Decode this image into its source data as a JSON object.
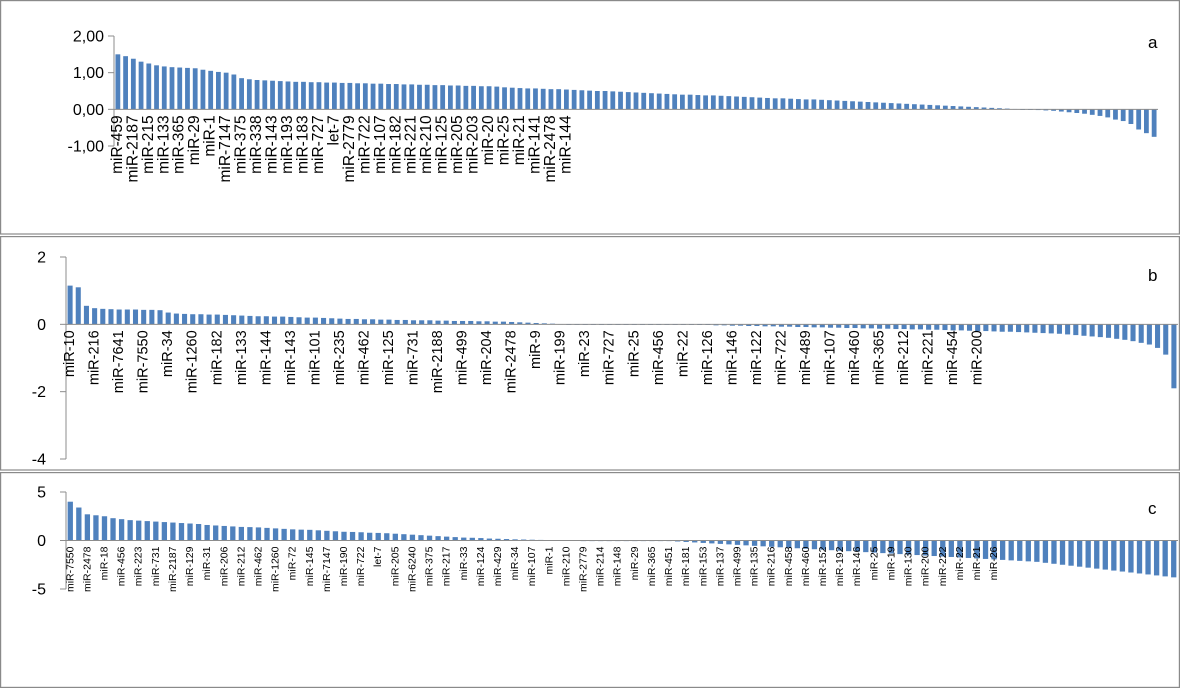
{
  "figure": {
    "bar_color": "#4f81bd",
    "frame_color": "#8a8a8a",
    "axis_color": "#8c8c8c"
  },
  "chart_data": [
    {
      "type": "bar",
      "panel_label": "a",
      "title": "",
      "xlabel": "",
      "ylabel": "",
      "ylim": [
        -1,
        2
      ],
      "yticks": [
        2,
        1,
        0,
        -1
      ],
      "ytick_labels": [
        "2,00",
        "1,00",
        "0,00",
        "-1,00"
      ],
      "grid": false,
      "legend": "none",
      "xtick_labels": [
        "miR-459",
        "miR-2187",
        "miR-215",
        "miR-133",
        "miR-365",
        "miR-29",
        "miR-1",
        "miR-7147",
        "miR-375",
        "miR-338",
        "miR-143",
        "miR-193",
        "miR-183",
        "miR-727",
        "let-7",
        "miR-2779",
        "miR-722",
        "miR-107",
        "miR-182",
        "miR-221",
        "miR-210",
        "miR-125",
        "miR-205",
        "miR-203",
        "miR-20",
        "miR-25",
        "miR-21",
        "miR-141",
        "miR-2478",
        "miR-144"
      ],
      "xtick_every": 2,
      "values": [
        1.5,
        1.45,
        1.38,
        1.3,
        1.25,
        1.2,
        1.17,
        1.15,
        1.14,
        1.13,
        1.12,
        1.08,
        1.05,
        1.02,
        1.0,
        0.95,
        0.85,
        0.82,
        0.8,
        0.79,
        0.78,
        0.77,
        0.76,
        0.75,
        0.75,
        0.74,
        0.74,
        0.73,
        0.73,
        0.72,
        0.72,
        0.71,
        0.71,
        0.7,
        0.7,
        0.69,
        0.69,
        0.68,
        0.68,
        0.67,
        0.67,
        0.66,
        0.66,
        0.65,
        0.65,
        0.64,
        0.64,
        0.63,
        0.63,
        0.62,
        0.6,
        0.59,
        0.58,
        0.57,
        0.57,
        0.56,
        0.55,
        0.55,
        0.54,
        0.53,
        0.52,
        0.51,
        0.5,
        0.5,
        0.49,
        0.48,
        0.47,
        0.46,
        0.45,
        0.44,
        0.43,
        0.42,
        0.41,
        0.4,
        0.4,
        0.39,
        0.38,
        0.38,
        0.37,
        0.36,
        0.35,
        0.34,
        0.33,
        0.32,
        0.31,
        0.3,
        0.3,
        0.29,
        0.28,
        0.27,
        0.27,
        0.26,
        0.25,
        0.24,
        0.23,
        0.22,
        0.21,
        0.2,
        0.19,
        0.18,
        0.17,
        0.16,
        0.15,
        0.14,
        0.13,
        0.12,
        0.11,
        0.1,
        0.09,
        0.08,
        0.07,
        0.06,
        0.05,
        0.04,
        0.03,
        0.02,
        0.01,
        0.0,
        -0.01,
        -0.02,
        -0.03,
        -0.04,
        -0.06,
        -0.08,
        -0.1,
        -0.12,
        -0.15,
        -0.18,
        -0.22,
        -0.28,
        -0.32,
        -0.4,
        -0.55,
        -0.65,
        -0.75
      ]
    },
    {
      "type": "bar",
      "panel_label": "b",
      "title": "",
      "xlabel": "",
      "ylabel": "",
      "ylim": [
        -4,
        2
      ],
      "yticks": [
        2,
        0,
        -2,
        -4
      ],
      "ytick_labels": [
        "2",
        "0",
        "-2",
        "-4"
      ],
      "grid": false,
      "legend": "none",
      "xtick_labels": [
        "miR-10",
        "miR-216",
        "miR-7641",
        "miR-7550",
        "miR-34",
        "miR-1260",
        "miR-182",
        "miR-133",
        "miR-144",
        "miR-143",
        "miR-101",
        "miR-235",
        "miR-462",
        "miR-125",
        "miR-731",
        "miR-2188",
        "miR-499",
        "miR-204",
        "miR-2478",
        "miR-9",
        "miR-199",
        "miR-23",
        "miR-727",
        "miR-25",
        "miR-456",
        "miR-22",
        "miR-126",
        "miR-146",
        "miR-122",
        "miR-722",
        "miR-489",
        "miR-107",
        "miR-460",
        "miR-365",
        "miR-212",
        "miR-221",
        "miR-454",
        "miR-200"
      ],
      "xtick_every": 3,
      "values": [
        1.15,
        1.1,
        0.55,
        0.48,
        0.46,
        0.45,
        0.44,
        0.44,
        0.44,
        0.43,
        0.43,
        0.42,
        0.35,
        0.32,
        0.31,
        0.3,
        0.3,
        0.29,
        0.29,
        0.28,
        0.27,
        0.26,
        0.25,
        0.24,
        0.24,
        0.23,
        0.23,
        0.22,
        0.21,
        0.2,
        0.2,
        0.19,
        0.18,
        0.17,
        0.16,
        0.16,
        0.15,
        0.15,
        0.14,
        0.14,
        0.13,
        0.13,
        0.12,
        0.12,
        0.12,
        0.11,
        0.11,
        0.1,
        0.1,
        0.1,
        0.09,
        0.09,
        0.08,
        0.08,
        0.07,
        0.06,
        0.05,
        0.04,
        0.03,
        0.02,
        0.01,
        0.0,
        0.0,
        0.0,
        0.0,
        0.0,
        0.0,
        0.0,
        0.0,
        0.0,
        0.0,
        0.0,
        0.0,
        0.0,
        0.0,
        0.0,
        -0.01,
        -0.02,
        -0.02,
        -0.03,
        -0.03,
        -0.04,
        -0.04,
        -0.05,
        -0.05,
        -0.06,
        -0.06,
        -0.07,
        -0.07,
        -0.08,
        -0.08,
        -0.09,
        -0.09,
        -0.1,
        -0.1,
        -0.11,
        -0.11,
        -0.12,
        -0.12,
        -0.13,
        -0.13,
        -0.14,
        -0.14,
        -0.15,
        -0.15,
        -0.16,
        -0.16,
        -0.17,
        -0.18,
        -0.18,
        -0.19,
        -0.2,
        -0.2,
        -0.21,
        -0.22,
        -0.22,
        -0.23,
        -0.24,
        -0.25,
        -0.26,
        -0.27,
        -0.28,
        -0.3,
        -0.32,
        -0.34,
        -0.36,
        -0.38,
        -0.4,
        -0.43,
        -0.46,
        -0.5,
        -0.55,
        -0.6,
        -0.7,
        -0.9,
        -1.9
      ]
    },
    {
      "type": "bar",
      "panel_label": "c",
      "title": "",
      "xlabel": "",
      "ylabel": "",
      "ylim": [
        -5,
        5
      ],
      "yticks": [
        5,
        0,
        -5
      ],
      "ytick_labels": [
        "5",
        "0",
        "-5"
      ],
      "grid": false,
      "legend": "none",
      "xtick_labels": [
        "miR-7550",
        "miR-2478",
        "miR-18",
        "miR-456",
        "miR-223",
        "miR-731",
        "miR-2187",
        "miR-129",
        "miR-31",
        "miR-206",
        "miR-212",
        "miR-462",
        "miR-1260",
        "miR-72",
        "miR-145",
        "miR-7147",
        "miR-190",
        "miR-722",
        "let-7",
        "miR-205",
        "miR-6240",
        "miR-375",
        "miR-217",
        "miR-33",
        "miR-124",
        "miR-429",
        "miR-34",
        "miR-107",
        "miR-1",
        "miR-210",
        "miR-2779",
        "miR-214",
        "miR-148",
        "miR-29",
        "miR-365",
        "miR-451",
        "miR-181",
        "miR-153",
        "miR-137",
        "miR-499",
        "miR-135",
        "miR-216",
        "miR-458",
        "miR-460",
        "miR-152",
        "miR-192",
        "miR-146",
        "miR-25",
        "miR-19",
        "miR-130",
        "miR-200",
        "miR-222",
        "miR-22",
        "miR-21",
        "miR-26"
      ],
      "xtick_every": 2,
      "values": [
        4.0,
        3.4,
        2.7,
        2.6,
        2.5,
        2.3,
        2.2,
        2.1,
        2.05,
        2.0,
        1.95,
        1.9,
        1.85,
        1.8,
        1.75,
        1.7,
        1.6,
        1.55,
        1.5,
        1.45,
        1.4,
        1.38,
        1.35,
        1.3,
        1.25,
        1.2,
        1.15,
        1.12,
        1.1,
        1.05,
        1.0,
        0.95,
        0.9,
        0.88,
        0.85,
        0.8,
        0.78,
        0.75,
        0.7,
        0.65,
        0.6,
        0.55,
        0.5,
        0.45,
        0.4,
        0.35,
        0.3,
        0.28,
        0.25,
        0.2,
        0.18,
        0.15,
        0.12,
        0.1,
        0.08,
        0.06,
        0.05,
        0.03,
        0.02,
        0.01,
        0.0,
        0.0,
        0.0,
        0.0,
        0.0,
        0.0,
        0.0,
        0.0,
        0.0,
        0.0,
        -0.05,
        -0.1,
        -0.15,
        -0.2,
        -0.25,
        -0.3,
        -0.35,
        -0.4,
        -0.45,
        -0.5,
        -0.55,
        -0.6,
        -0.65,
        -0.7,
        -0.75,
        -0.8,
        -0.85,
        -0.9,
        -0.95,
        -1.0,
        -1.05,
        -1.1,
        -1.15,
        -1.2,
        -1.25,
        -1.3,
        -1.35,
        -1.4,
        -1.45,
        -1.5,
        -1.55,
        -1.6,
        -1.65,
        -1.7,
        -1.75,
        -1.8,
        -1.85,
        -1.9,
        -1.95,
        -2.0,
        -2.05,
        -2.1,
        -2.15,
        -2.2,
        -2.3,
        -2.4,
        -2.5,
        -2.6,
        -2.7,
        -2.8,
        -2.9,
        -3.0,
        -3.1,
        -3.2,
        -3.3,
        -3.4,
        -3.5,
        -3.6,
        -3.7,
        -3.8
      ]
    }
  ]
}
